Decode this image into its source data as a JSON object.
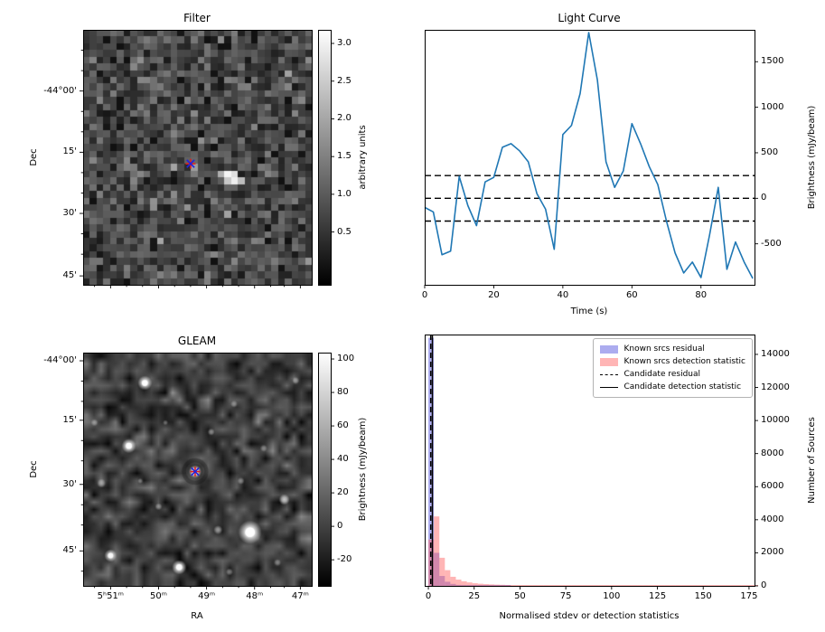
{
  "figure": {
    "background": "#ffffff"
  },
  "chart_data": [
    {
      "id": "filter",
      "type": "heatmap",
      "title": "Filter",
      "ylabel": "Dec",
      "colorbar": {
        "label": "arbitrary units",
        "ticks": [
          0.5,
          1.0,
          1.5,
          2.0,
          2.5,
          3.0
        ],
        "vmin": -0.2,
        "vmax": 3.18,
        "decimals": 1,
        "cmap": "greys"
      },
      "yticks": [
        {
          "label": "-44°00'",
          "f": 0.24
        },
        {
          "label": "15'",
          "f": 0.48
        },
        {
          "label": "30'",
          "f": 0.72
        },
        {
          "label": "45'",
          "f": 0.965
        }
      ],
      "yminor_f": [
        0.08,
        0.16,
        0.32,
        0.4,
        0.56,
        0.64,
        0.8,
        0.88
      ],
      "xmajor_f": [
        0.12,
        0.33,
        0.54,
        0.75,
        0.95
      ],
      "xminor_f": [
        0.05,
        0.19,
        0.26,
        0.4,
        0.47,
        0.61,
        0.68,
        0.82,
        0.88
      ],
      "marker": {
        "fx": 0.47,
        "fy": 0.525,
        "plus_color": "#dd2222",
        "x_color": "#2222dd"
      },
      "noise": {
        "cols": 34,
        "rows": 38,
        "seed": 20,
        "mean": 0.75,
        "sd": 0.38
      },
      "hot_cells": [
        [
          21,
          21,
          3.05
        ],
        [
          22,
          21,
          2.75
        ],
        [
          21,
          22,
          2.45
        ],
        [
          22,
          22,
          2.95
        ],
        [
          20,
          21,
          2.1
        ],
        [
          23,
          22,
          2.3
        ],
        [
          16,
          20,
          1.9
        ],
        [
          16,
          21,
          1.45
        ]
      ]
    },
    {
      "id": "light_curve",
      "type": "line",
      "title": "Light Curve",
      "xlabel": "Time (s)",
      "ylabel": "Brightness (mJy/beam)",
      "line_color": "#1f77b4",
      "xlim": [
        0,
        95.5
      ],
      "ylim": [
        -950,
        1850
      ],
      "xticks": [
        0,
        20,
        40,
        60,
        80
      ],
      "yticks": [
        -500,
        0,
        500,
        1000,
        1500
      ],
      "dashed_hlines": [
        250,
        0,
        -250
      ],
      "x": [
        0,
        2.5,
        5,
        7.5,
        10,
        12.5,
        15,
        17.5,
        20,
        22.5,
        25,
        27.5,
        30,
        32.5,
        35,
        37.5,
        40,
        42.5,
        45,
        47.5,
        50,
        52.5,
        55,
        57.5,
        60,
        62.5,
        65,
        67.5,
        70,
        72.5,
        75,
        77.5,
        80,
        82.5,
        85,
        87.5,
        90,
        92.5,
        95
      ],
      "y": [
        -100,
        -150,
        -620,
        -580,
        240,
        -80,
        -300,
        180,
        230,
        560,
        600,
        520,
        400,
        50,
        -120,
        -560,
        700,
        800,
        1150,
        1820,
        1300,
        400,
        120,
        300,
        820,
        600,
        350,
        150,
        -250,
        -600,
        -820,
        -700,
        -870,
        -400,
        120,
        -780,
        -480,
        -700,
        -880
      ]
    },
    {
      "id": "gleam",
      "type": "heatmap",
      "title": "GLEAM",
      "xlabel": "RA",
      "ylabel": "Dec",
      "colorbar": {
        "label": "Brightness (mJy/beam)",
        "ticks": [
          -20,
          0,
          20,
          40,
          60,
          80,
          100
        ],
        "vmin": -35.6,
        "vmax": 103.8,
        "decimals": 0,
        "cmap": "greys"
      },
      "yticks": [
        {
          "label": "-44°00'",
          "f": 0.035
        },
        {
          "label": "15'",
          "f": 0.29
        },
        {
          "label": "30'",
          "f": 0.565
        },
        {
          "label": "45'",
          "f": 0.85
        }
      ],
      "yminor_f": [
        0.122,
        0.209,
        0.377,
        0.464,
        0.652,
        0.739,
        0.937
      ],
      "xticks": [
        {
          "label": "5ʰ51ᵐ",
          "f": 0.12
        },
        {
          "label": "50ᵐ",
          "f": 0.33
        },
        {
          "label": "49ᵐ",
          "f": 0.54
        },
        {
          "label": "48ᵐ",
          "f": 0.75
        },
        {
          "label": "47ᵐ",
          "f": 0.95
        }
      ],
      "xminor_f": [
        0.05,
        0.19,
        0.26,
        0.4,
        0.47,
        0.61,
        0.68,
        0.82,
        0.88
      ],
      "marker": {
        "fx": 0.49,
        "fy": 0.51,
        "plus_color": "#dd2222",
        "x_color": "#2222dd"
      },
      "noise": {
        "cols": 32,
        "rows": 32,
        "seed": 5,
        "mean": 64,
        "sd": 26
      },
      "sources": [
        [
          0.27,
          0.13,
          8,
          0.95
        ],
        [
          0.2,
          0.4,
          8,
          0.9
        ],
        [
          0.08,
          0.56,
          5,
          0.5
        ],
        [
          0.49,
          0.51,
          7,
          1.0
        ],
        [
          0.73,
          0.77,
          13,
          1.0
        ],
        [
          0.88,
          0.63,
          6,
          0.75
        ],
        [
          0.42,
          0.92,
          8,
          0.9
        ],
        [
          0.12,
          0.87,
          7,
          0.85
        ],
        [
          0.56,
          0.34,
          4,
          0.45
        ],
        [
          0.66,
          0.22,
          4,
          0.4
        ],
        [
          0.33,
          0.66,
          4,
          0.45
        ],
        [
          0.59,
          0.76,
          5,
          0.55
        ],
        [
          0.79,
          0.41,
          4,
          0.4
        ],
        [
          0.93,
          0.12,
          4,
          0.45
        ],
        [
          0.05,
          0.3,
          4,
          0.4
        ],
        [
          0.36,
          0.3,
          3,
          0.35
        ],
        [
          0.69,
          0.55,
          4,
          0.4
        ],
        [
          0.25,
          0.55,
          3,
          0.35
        ],
        [
          0.85,
          0.9,
          4,
          0.4
        ],
        [
          0.64,
          0.94,
          4,
          0.4
        ]
      ]
    },
    {
      "id": "histogram",
      "type": "bar",
      "xlabel": "Normalised stdev or detection statistics",
      "ylabel": "Number of Sources",
      "xlim": [
        -2,
        178
      ],
      "ylim": [
        0,
        15200
      ],
      "xticks": [
        0,
        25,
        50,
        75,
        100,
        125,
        150,
        175
      ],
      "yticks": [
        0,
        2000,
        4000,
        6000,
        8000,
        10000,
        12000,
        14000
      ],
      "bin_start": 0,
      "bin_width": 3,
      "series": [
        {
          "name": "Known srcs residual",
          "color": "rgba(70,70,220,0.45)",
          "values": [
            15000,
            2000,
            600,
            250,
            120,
            60,
            30,
            15,
            8,
            5,
            3,
            2,
            1,
            1,
            1,
            0,
            0,
            0,
            0,
            0,
            0,
            0,
            0,
            0,
            0,
            0,
            0,
            0,
            0,
            0,
            0,
            0,
            0,
            0,
            0,
            0,
            0,
            0,
            0,
            0,
            0,
            0,
            0,
            0,
            0,
            0,
            0,
            0,
            0,
            0,
            0,
            0,
            0,
            0,
            0,
            0,
            0,
            0,
            0,
            0
          ]
        },
        {
          "name": "Known srcs detection statistic",
          "color": "rgba(255,90,90,0.45)",
          "values": [
            2800,
            4200,
            1700,
            950,
            550,
            380,
            280,
            210,
            160,
            130,
            105,
            90,
            75,
            65,
            55,
            50,
            45,
            40,
            38,
            35,
            32,
            30,
            28,
            26,
            25,
            23,
            22,
            21,
            20,
            19,
            18,
            17,
            16,
            15,
            15,
            14,
            14,
            13,
            13,
            12,
            12,
            11,
            11,
            10,
            10,
            10,
            9,
            9,
            9,
            8,
            8,
            8,
            8,
            7,
            7,
            7,
            7,
            6,
            6,
            6
          ]
        }
      ],
      "candidate_residual": {
        "x": 1.3,
        "style": "dashed"
      },
      "candidate_detection": {
        "x": 2.2,
        "style": "solid"
      },
      "legend_labels": [
        "Known srcs residual",
        "Known srcs detection statistic",
        "Candidate residual",
        "Candidate detection statistic"
      ]
    }
  ]
}
